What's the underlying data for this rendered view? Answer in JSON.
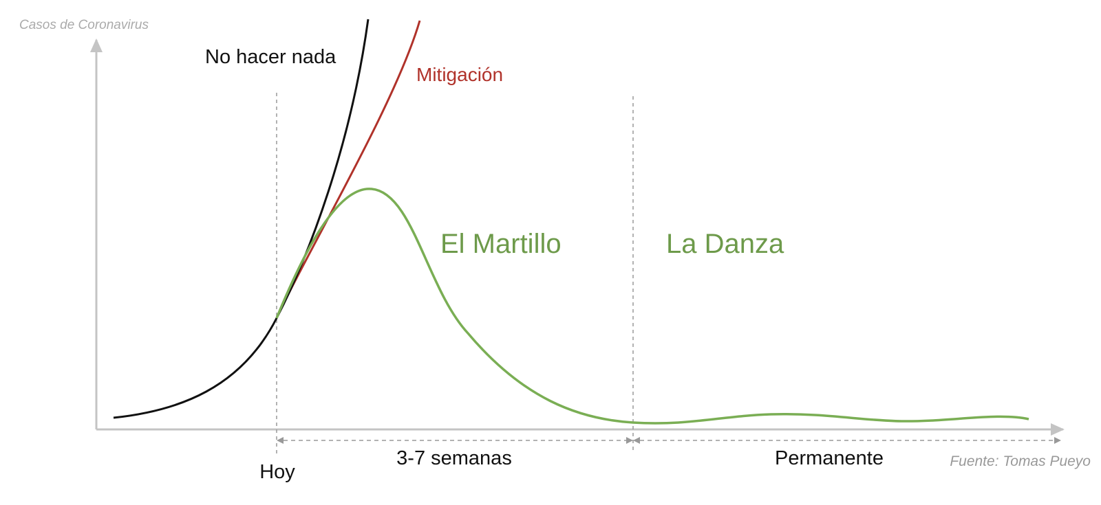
{
  "axis": {
    "y_label": "Casos de Coronavirus"
  },
  "curves": [
    {
      "label": "No hacer nada"
    },
    {
      "label": "Mitigación"
    }
  ],
  "phases": [
    {
      "label": "El Martillo",
      "duration": "3-7 semanas"
    },
    {
      "label": "La Danza",
      "duration": "Permanente"
    }
  ],
  "marker": {
    "label": "Hoy"
  },
  "source": "Fuente: Tomas Pueyo"
}
